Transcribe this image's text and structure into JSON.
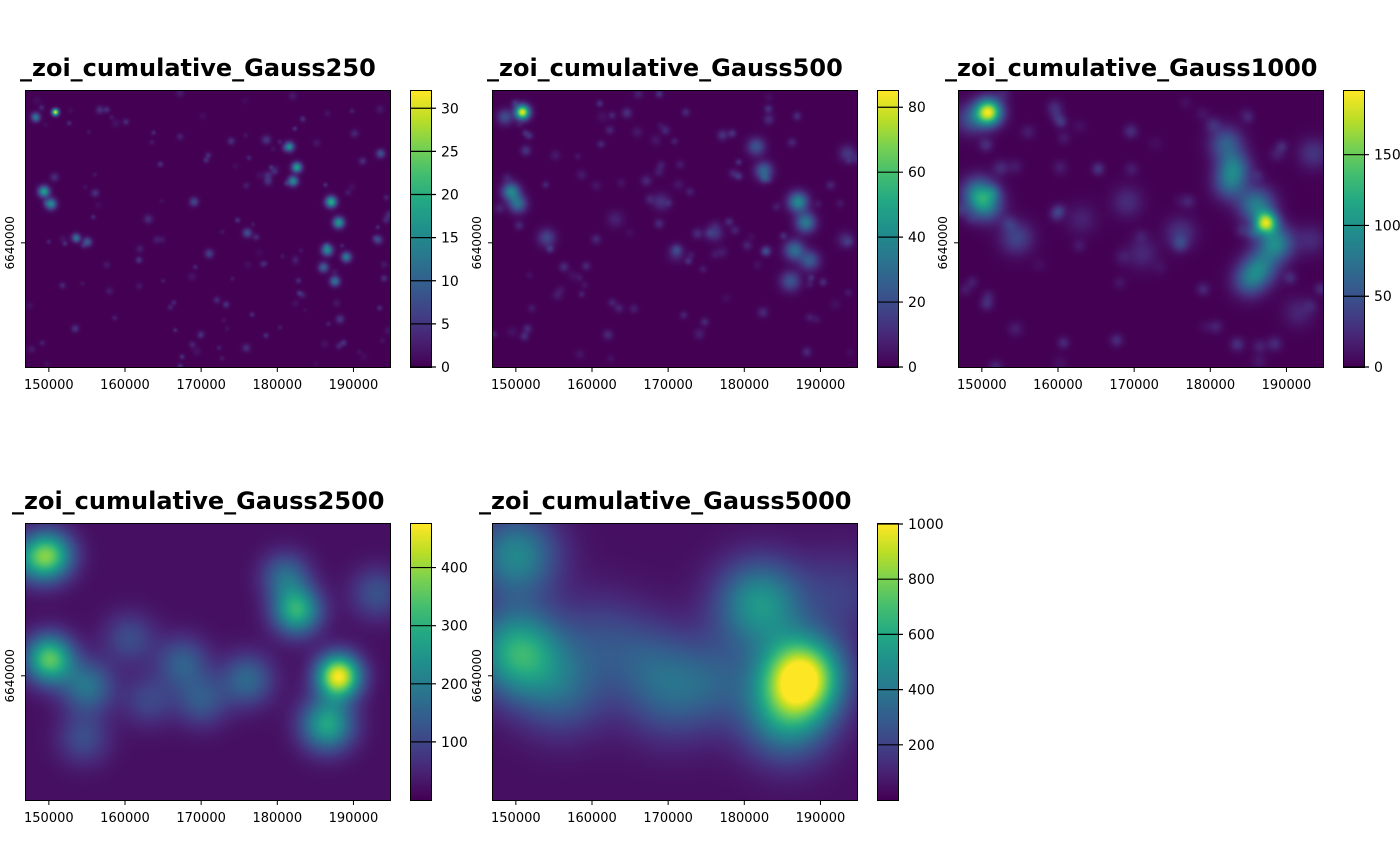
{
  "chart_data": [
    {
      "type": "heatmap",
      "title": "_zoi_cumulative_Gauss250",
      "x_ticks": [
        "150000",
        "160000",
        "170000",
        "180000",
        "190000"
      ],
      "y_ticks": [
        "6640000"
      ],
      "legend_ticks": [
        "0",
        "5",
        "10",
        "15",
        "20",
        "25",
        "30"
      ],
      "legend_range": [
        0,
        32
      ],
      "hotspots": [
        {
          "x": 150800,
          "y": 6659000,
          "v": 31,
          "s": 300
        },
        {
          "x": 148200,
          "y": 6658300,
          "v": 12,
          "s": 400
        },
        {
          "x": 149300,
          "y": 6647500,
          "v": 18,
          "s": 500
        },
        {
          "x": 150200,
          "y": 6645700,
          "v": 15,
          "s": 500
        },
        {
          "x": 153500,
          "y": 6640800,
          "v": 10,
          "s": 400
        },
        {
          "x": 155000,
          "y": 6640200,
          "v": 9,
          "s": 400
        },
        {
          "x": 181500,
          "y": 6654000,
          "v": 14,
          "s": 450
        },
        {
          "x": 182500,
          "y": 6651000,
          "v": 18,
          "s": 450
        },
        {
          "x": 182000,
          "y": 6649000,
          "v": 15,
          "s": 450
        },
        {
          "x": 187000,
          "y": 6646000,
          "v": 20,
          "s": 500
        },
        {
          "x": 188000,
          "y": 6643000,
          "v": 17,
          "s": 500
        },
        {
          "x": 186500,
          "y": 6639000,
          "v": 15,
          "s": 500
        },
        {
          "x": 189000,
          "y": 6638000,
          "v": 13,
          "s": 450
        },
        {
          "x": 187500,
          "y": 6634500,
          "v": 12,
          "s": 450
        },
        {
          "x": 186000,
          "y": 6636500,
          "v": 10,
          "s": 450
        },
        {
          "x": 176000,
          "y": 6641500,
          "v": 8,
          "s": 400
        },
        {
          "x": 169000,
          "y": 6646000,
          "v": 7,
          "s": 400
        },
        {
          "x": 171000,
          "y": 6638500,
          "v": 6,
          "s": 400
        },
        {
          "x": 193500,
          "y": 6653000,
          "v": 8,
          "s": 400
        },
        {
          "x": 193200,
          "y": 6640500,
          "v": 6,
          "s": 400
        },
        {
          "x": 163000,
          "y": 6643500,
          "v": 4,
          "s": 400
        },
        {
          "x": 178500,
          "y": 6655000,
          "v": 5,
          "s": 400
        }
      ]
    },
    {
      "type": "heatmap",
      "title": "_zoi_cumulative_Gauss500",
      "x_ticks": [
        "150000",
        "160000",
        "170000",
        "180000",
        "190000"
      ],
      "y_ticks": [
        "6640000"
      ],
      "legend_ticks": [
        "0",
        "20",
        "40",
        "60",
        "80"
      ],
      "legend_range": [
        0,
        85
      ],
      "hotspots": [
        {
          "x": 150800,
          "y": 6659000,
          "v": 82,
          "s": 650
        },
        {
          "x": 148500,
          "y": 6658300,
          "v": 20,
          "s": 700
        },
        {
          "x": 149300,
          "y": 6647500,
          "v": 38,
          "s": 800
        },
        {
          "x": 150200,
          "y": 6645700,
          "v": 30,
          "s": 800
        },
        {
          "x": 154000,
          "y": 6640800,
          "v": 18,
          "s": 800
        },
        {
          "x": 181500,
          "y": 6654000,
          "v": 22,
          "s": 800
        },
        {
          "x": 182500,
          "y": 6650500,
          "v": 28,
          "s": 800
        },
        {
          "x": 187000,
          "y": 6646000,
          "v": 40,
          "s": 900
        },
        {
          "x": 188000,
          "y": 6643000,
          "v": 34,
          "s": 900
        },
        {
          "x": 186500,
          "y": 6639000,
          "v": 30,
          "s": 900
        },
        {
          "x": 188500,
          "y": 6637500,
          "v": 24,
          "s": 900
        },
        {
          "x": 186000,
          "y": 6634500,
          "v": 22,
          "s": 900
        },
        {
          "x": 176000,
          "y": 6641500,
          "v": 14,
          "s": 750
        },
        {
          "x": 169000,
          "y": 6646000,
          "v": 12,
          "s": 750
        },
        {
          "x": 171000,
          "y": 6638500,
          "v": 10,
          "s": 750
        },
        {
          "x": 193500,
          "y": 6653000,
          "v": 14,
          "s": 750
        },
        {
          "x": 193200,
          "y": 6640500,
          "v": 10,
          "s": 750
        },
        {
          "x": 163000,
          "y": 6643500,
          "v": 8,
          "s": 750
        }
      ]
    },
    {
      "type": "heatmap",
      "title": "_zoi_cumulative_Gauss1000",
      "x_ticks": [
        "150000",
        "160000",
        "170000",
        "180000",
        "190000"
      ],
      "y_ticks": [
        "6640000"
      ],
      "legend_ticks": [
        "0",
        "50",
        "100",
        "150"
      ],
      "legend_range": [
        0,
        195
      ],
      "hotspots": [
        {
          "x": 150800,
          "y": 6659000,
          "v": 185,
          "s": 1200
        },
        {
          "x": 148500,
          "y": 6658000,
          "v": 45,
          "s": 1400
        },
        {
          "x": 149500,
          "y": 6647200,
          "v": 80,
          "s": 1500
        },
        {
          "x": 150500,
          "y": 6645500,
          "v": 70,
          "s": 1500
        },
        {
          "x": 154500,
          "y": 6640800,
          "v": 40,
          "s": 1500
        },
        {
          "x": 182000,
          "y": 6654500,
          "v": 55,
          "s": 1500
        },
        {
          "x": 183000,
          "y": 6651000,
          "v": 70,
          "s": 1500
        },
        {
          "x": 182500,
          "y": 6648500,
          "v": 55,
          "s": 1500
        },
        {
          "x": 186000,
          "y": 6645500,
          "v": 80,
          "s": 1600
        },
        {
          "x": 187300,
          "y": 6643000,
          "v": 150,
          "s": 1000
        },
        {
          "x": 188500,
          "y": 6640000,
          "v": 90,
          "s": 1600
        },
        {
          "x": 186500,
          "y": 6636500,
          "v": 70,
          "s": 1600
        },
        {
          "x": 185000,
          "y": 6634500,
          "v": 55,
          "s": 1500
        },
        {
          "x": 176000,
          "y": 6641500,
          "v": 30,
          "s": 1400
        },
        {
          "x": 169000,
          "y": 6646000,
          "v": 25,
          "s": 1400
        },
        {
          "x": 171000,
          "y": 6638500,
          "v": 22,
          "s": 1400
        },
        {
          "x": 193500,
          "y": 6653000,
          "v": 30,
          "s": 1400
        },
        {
          "x": 193200,
          "y": 6640500,
          "v": 22,
          "s": 1400
        },
        {
          "x": 163000,
          "y": 6643500,
          "v": 18,
          "s": 1400
        },
        {
          "x": 191500,
          "y": 6630000,
          "v": 20,
          "s": 1400
        }
      ]
    },
    {
      "type": "heatmap",
      "title": "_zoi_cumulative_Gauss2500",
      "x_ticks": [
        "150000",
        "160000",
        "170000",
        "180000",
        "190000"
      ],
      "y_ticks": [
        "6640000"
      ],
      "legend_ticks": [
        "100",
        "200",
        "300",
        "400"
      ],
      "legend_range": [
        0,
        475
      ],
      "hotspots": [
        {
          "x": 150000,
          "y": 6657500,
          "v": 300,
          "s": 2200
        },
        {
          "x": 147500,
          "y": 6657000,
          "v": 120,
          "s": 2200
        },
        {
          "x": 150000,
          "y": 6642500,
          "v": 330,
          "s": 2200
        },
        {
          "x": 155000,
          "y": 6638500,
          "v": 160,
          "s": 2400
        },
        {
          "x": 182500,
          "y": 6649500,
          "v": 280,
          "s": 2200
        },
        {
          "x": 181000,
          "y": 6654500,
          "v": 140,
          "s": 2200
        },
        {
          "x": 188000,
          "y": 6640000,
          "v": 450,
          "s": 2000
        },
        {
          "x": 186500,
          "y": 6633000,
          "v": 260,
          "s": 2400
        },
        {
          "x": 176000,
          "y": 6639500,
          "v": 140,
          "s": 2400
        },
        {
          "x": 167500,
          "y": 6642000,
          "v": 120,
          "s": 2400
        },
        {
          "x": 170000,
          "y": 6636500,
          "v": 110,
          "s": 2400
        },
        {
          "x": 160500,
          "y": 6645500,
          "v": 90,
          "s": 2400
        },
        {
          "x": 193000,
          "y": 6652000,
          "v": 100,
          "s": 2400
        },
        {
          "x": 154500,
          "y": 6631000,
          "v": 90,
          "s": 2400
        },
        {
          "x": 163000,
          "y": 6636500,
          "v": 80,
          "s": 2400
        }
      ]
    },
    {
      "type": "heatmap",
      "title": "_zoi_cumulative_Gauss5000",
      "x_ticks": [
        "150000",
        "160000",
        "170000",
        "180000",
        "190000"
      ],
      "y_ticks": [
        "6640000"
      ],
      "legend_ticks": [
        "200",
        "400",
        "600",
        "800",
        "1000"
      ],
      "legend_range": [
        0,
        1000
      ],
      "hotspots": [
        {
          "x": 150000,
          "y": 6657500,
          "v": 420,
          "s": 3800
        },
        {
          "x": 150200,
          "y": 6643500,
          "v": 580,
          "s": 4000
        },
        {
          "x": 156000,
          "y": 6638000,
          "v": 250,
          "s": 4200
        },
        {
          "x": 182000,
          "y": 6650500,
          "v": 480,
          "s": 4000
        },
        {
          "x": 187500,
          "y": 6640000,
          "v": 960,
          "s": 3600
        },
        {
          "x": 185500,
          "y": 6634000,
          "v": 420,
          "s": 4000
        },
        {
          "x": 176000,
          "y": 6639500,
          "v": 200,
          "s": 4200
        },
        {
          "x": 167500,
          "y": 6642000,
          "v": 180,
          "s": 4200
        },
        {
          "x": 170000,
          "y": 6636500,
          "v": 170,
          "s": 4200
        },
        {
          "x": 161000,
          "y": 6646000,
          "v": 140,
          "s": 4200
        },
        {
          "x": 193000,
          "y": 6652000,
          "v": 140,
          "s": 4200
        }
      ]
    }
  ]
}
